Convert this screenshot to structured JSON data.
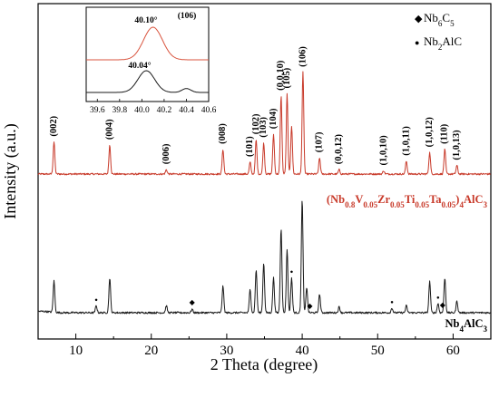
{
  "chart_data": {
    "type": "line",
    "xlabel": "2 Theta (degree)",
    "ylabel": "Intensity (a.u.)",
    "xlim": [
      5,
      65
    ],
    "xticks": [
      "10",
      "20",
      "30",
      "40",
      "50",
      "60"
    ],
    "grid": false,
    "legend": {
      "placement": "top-right",
      "items": [
        {
          "marker": "◆",
          "label_main": "Nb",
          "sub1": "6",
          "label_mid": "C",
          "sub2": "5"
        },
        {
          "marker": "●",
          "label_main": "Nb",
          "sub1": "2",
          "label_mid": "AlC",
          "sub2": ""
        }
      ]
    },
    "series": [
      {
        "name": "(Nb0.8V0.05Zr0.05Ti0.05Ta0.05)4AlC3",
        "color": "#c83a2a",
        "label_parts": [
          {
            "t": "(Nb",
            "sub": false
          },
          {
            "t": "0.8",
            "sub": true
          },
          {
            "t": "V",
            "sub": false
          },
          {
            "t": "0.05",
            "sub": true
          },
          {
            "t": "Zr",
            "sub": false
          },
          {
            "t": "0.05",
            "sub": true
          },
          {
            "t": "Ti",
            "sub": false
          },
          {
            "t": "0.05",
            "sub": true
          },
          {
            "t": "Ta",
            "sub": false
          },
          {
            "t": "0.05",
            "sub": true
          },
          {
            "t": ")",
            "sub": false
          },
          {
            "t": "4",
            "sub": true
          },
          {
            "t": "AlC",
            "sub": false
          },
          {
            "t": "3",
            "sub": true
          }
        ],
        "baseline": 0.0,
        "peaks": [
          {
            "x": 7.1,
            "h": 0.3
          },
          {
            "x": 14.5,
            "h": 0.27
          },
          {
            "x": 22.0,
            "h": 0.04
          },
          {
            "x": 29.5,
            "h": 0.23
          },
          {
            "x": 33.1,
            "h": 0.11
          },
          {
            "x": 33.9,
            "h": 0.32
          },
          {
            "x": 34.9,
            "h": 0.29
          },
          {
            "x": 36.2,
            "h": 0.37
          },
          {
            "x": 37.2,
            "h": 0.73
          },
          {
            "x": 38.0,
            "h": 0.75
          },
          {
            "x": 38.6,
            "h": 0.45
          },
          {
            "x": 40.1,
            "h": 0.95
          },
          {
            "x": 42.3,
            "h": 0.15
          },
          {
            "x": 44.9,
            "h": 0.04
          },
          {
            "x": 50.8,
            "h": 0.03
          },
          {
            "x": 53.8,
            "h": 0.12
          },
          {
            "x": 56.9,
            "h": 0.2
          },
          {
            "x": 58.9,
            "h": 0.23
          },
          {
            "x": 60.5,
            "h": 0.08
          }
        ]
      },
      {
        "name": "Nb4AlC3",
        "color": "#1a1a1a",
        "label_parts": [
          {
            "t": "Nb",
            "sub": false
          },
          {
            "t": "4",
            "sub": true
          },
          {
            "t": "AlC",
            "sub": false
          },
          {
            "t": "3",
            "sub": true
          }
        ],
        "baseline": 0.0,
        "peaks": [
          {
            "x": 7.1,
            "h": 0.27
          },
          {
            "x": 12.7,
            "h": 0.06
          },
          {
            "x": 14.5,
            "h": 0.3
          },
          {
            "x": 22.0,
            "h": 0.06
          },
          {
            "x": 25.4,
            "h": 0.03
          },
          {
            "x": 29.5,
            "h": 0.23
          },
          {
            "x": 33.1,
            "h": 0.2
          },
          {
            "x": 33.9,
            "h": 0.37
          },
          {
            "x": 34.9,
            "h": 0.43
          },
          {
            "x": 36.2,
            "h": 0.3
          },
          {
            "x": 37.2,
            "h": 0.73
          },
          {
            "x": 38.0,
            "h": 0.55
          },
          {
            "x": 38.6,
            "h": 0.3
          },
          {
            "x": 40.0,
            "h": 0.97
          },
          {
            "x": 40.6,
            "h": 0.22
          },
          {
            "x": 42.3,
            "h": 0.16
          },
          {
            "x": 44.9,
            "h": 0.05
          },
          {
            "x": 51.9,
            "h": 0.04
          },
          {
            "x": 53.8,
            "h": 0.06
          },
          {
            "x": 56.9,
            "h": 0.27
          },
          {
            "x": 58.0,
            "h": 0.08
          },
          {
            "x": 58.9,
            "h": 0.3
          },
          {
            "x": 60.5,
            "h": 0.1
          }
        ],
        "markers": [
          {
            "x": 12.7,
            "sym": "●"
          },
          {
            "x": 25.4,
            "sym": "◆"
          },
          {
            "x": 38.6,
            "sym": "●"
          },
          {
            "x": 41.0,
            "sym": "◆"
          },
          {
            "x": 51.9,
            "sym": "●"
          },
          {
            "x": 58.0,
            "sym": "●"
          },
          {
            "x": 58.6,
            "sym": "◆"
          }
        ]
      }
    ],
    "peak_labels": [
      {
        "x": 7.1,
        "label": "(002)"
      },
      {
        "x": 14.5,
        "label": "(004)"
      },
      {
        "x": 22.0,
        "label": "(006)"
      },
      {
        "x": 29.5,
        "label": "(008)"
      },
      {
        "x": 33.1,
        "label": "(101)"
      },
      {
        "x": 33.9,
        "label": "(102)"
      },
      {
        "x": 34.9,
        "label": "(103)"
      },
      {
        "x": 36.2,
        "label": "(104)"
      },
      {
        "x": 37.2,
        "label": "(0,0,10)"
      },
      {
        "x": 38.0,
        "label": "(105)"
      },
      {
        "x": 40.1,
        "label": "(106)"
      },
      {
        "x": 42.3,
        "label": "(107)"
      },
      {
        "x": 44.9,
        "label": "(0,0,12)"
      },
      {
        "x": 50.8,
        "label": "(1,0,10)"
      },
      {
        "x": 53.8,
        "label": "(1,0,11)"
      },
      {
        "x": 56.9,
        "label": "(1,0,12)"
      },
      {
        "x": 58.9,
        "label": "(110)"
      },
      {
        "x": 60.5,
        "label": "(1,0,13)"
      }
    ],
    "inset": {
      "title": "(106)",
      "xlim": [
        39.5,
        40.6
      ],
      "xticks": [
        "39.6",
        "39.8",
        "40.0",
        "40.2",
        "40.4",
        "40.6"
      ],
      "curves": [
        {
          "name": "red",
          "color": "#d9553f",
          "center": 40.1,
          "label": "40.10°"
        },
        {
          "name": "black",
          "color": "#1a1a1a",
          "center": 40.04,
          "label": "40.04°"
        }
      ]
    }
  }
}
